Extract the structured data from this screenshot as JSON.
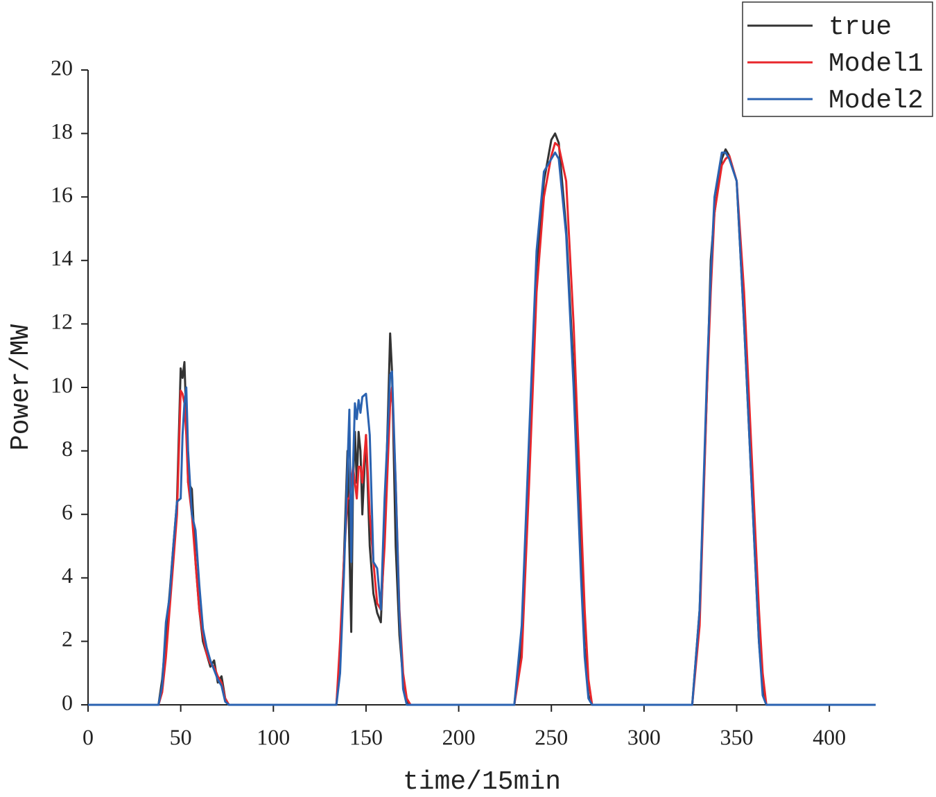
{
  "chart_data": {
    "type": "line",
    "xlabel": "time/15min",
    "ylabel": "Power/MW",
    "xlim": [
      0,
      425
    ],
    "ylim": [
      0,
      20
    ],
    "xticks": [
      0,
      50,
      100,
      150,
      200,
      250,
      300,
      350,
      400
    ],
    "yticks": [
      0,
      2,
      4,
      6,
      8,
      10,
      12,
      14,
      16,
      18,
      20
    ],
    "legend": "top-right",
    "x": [
      0,
      38,
      40,
      42,
      44,
      46,
      48,
      50,
      51,
      52,
      53,
      54,
      56,
      58,
      60,
      62,
      64,
      66,
      68,
      70,
      72,
      74,
      76,
      134,
      136,
      138,
      140,
      141,
      142,
      143,
      144,
      145,
      146,
      147,
      148,
      150,
      152,
      154,
      156,
      158,
      160,
      162,
      163,
      164,
      166,
      168,
      170,
      172,
      174,
      230,
      234,
      238,
      242,
      246,
      250,
      252,
      254,
      258,
      262,
      266,
      268,
      270,
      272,
      326,
      330,
      334,
      336,
      338,
      342,
      344,
      346,
      350,
      354,
      358,
      362,
      364,
      366,
      425
    ],
    "series": [
      {
        "name": "true",
        "color": "#333333",
        "values": [
          0,
          0,
          0.8,
          2.2,
          3.5,
          5,
          6.4,
          10.6,
          10.3,
          10.8,
          9,
          7,
          6.8,
          4.5,
          3,
          2,
          1.6,
          1.2,
          1.4,
          0.7,
          0.9,
          0.2,
          0,
          0,
          1.5,
          4.5,
          8,
          5,
          2.3,
          7,
          8.6,
          7,
          8.6,
          8,
          6,
          8.5,
          5,
          3.5,
          2.9,
          2.6,
          5.5,
          9.5,
          11.7,
          10.5,
          5,
          2.2,
          0.8,
          0.1,
          0,
          0,
          2,
          8,
          13.8,
          16.5,
          17.8,
          18,
          17.7,
          15,
          10.5,
          4.5,
          1.8,
          0.3,
          0,
          0,
          3,
          10,
          14,
          15.5,
          17.2,
          17.5,
          17.3,
          16.5,
          12,
          7,
          2,
          0.5,
          0,
          0
        ]
      },
      {
        "name": "Model1",
        "color": "#e8262b",
        "values": [
          0,
          0,
          0.4,
          1.5,
          3,
          4.5,
          6,
          9.9,
          9.8,
          9.5,
          8.5,
          7,
          6,
          4.5,
          3,
          2.2,
          1.6,
          1.3,
          1.2,
          0.9,
          0.7,
          0.2,
          0,
          0,
          2,
          4.5,
          6.5,
          6.5,
          7,
          7.5,
          7,
          6.5,
          7.5,
          7.5,
          7,
          8.5,
          6,
          4.5,
          3.2,
          3,
          5,
          8,
          9.5,
          10,
          7,
          3,
          1,
          0.2,
          0,
          0,
          1.5,
          7,
          13,
          16,
          17.3,
          17.7,
          17.6,
          16.5,
          12,
          6,
          3,
          0.8,
          0,
          0,
          2.5,
          10,
          13,
          15.5,
          17,
          17.2,
          17.3,
          16.5,
          13,
          8,
          3,
          1,
          0,
          0
        ]
      },
      {
        "name": "Model2",
        "color": "#2a62b0",
        "values": [
          0,
          0,
          0.6,
          2.6,
          3.4,
          5,
          6.4,
          6.5,
          8.5,
          9.5,
          10,
          8,
          6,
          5.5,
          3.8,
          2.4,
          1.8,
          1.4,
          1.1,
          0.8,
          0.6,
          0.1,
          0,
          0,
          1,
          4,
          7.5,
          9.3,
          4.5,
          7.5,
          9.5,
          9,
          9.6,
          9.2,
          9.7,
          9.8,
          8.5,
          4.5,
          4.3,
          3,
          6.5,
          9,
          10.4,
          10.5,
          7,
          2.8,
          0.5,
          0,
          0,
          0,
          2.5,
          8.5,
          14.3,
          16.8,
          17.2,
          17.4,
          17.2,
          14.8,
          10,
          4,
          1.5,
          0.2,
          0,
          0,
          3,
          10.5,
          13.5,
          16,
          17.4,
          17.4,
          17.2,
          16.5,
          12,
          7,
          2,
          0.3,
          0,
          0
        ]
      }
    ]
  }
}
